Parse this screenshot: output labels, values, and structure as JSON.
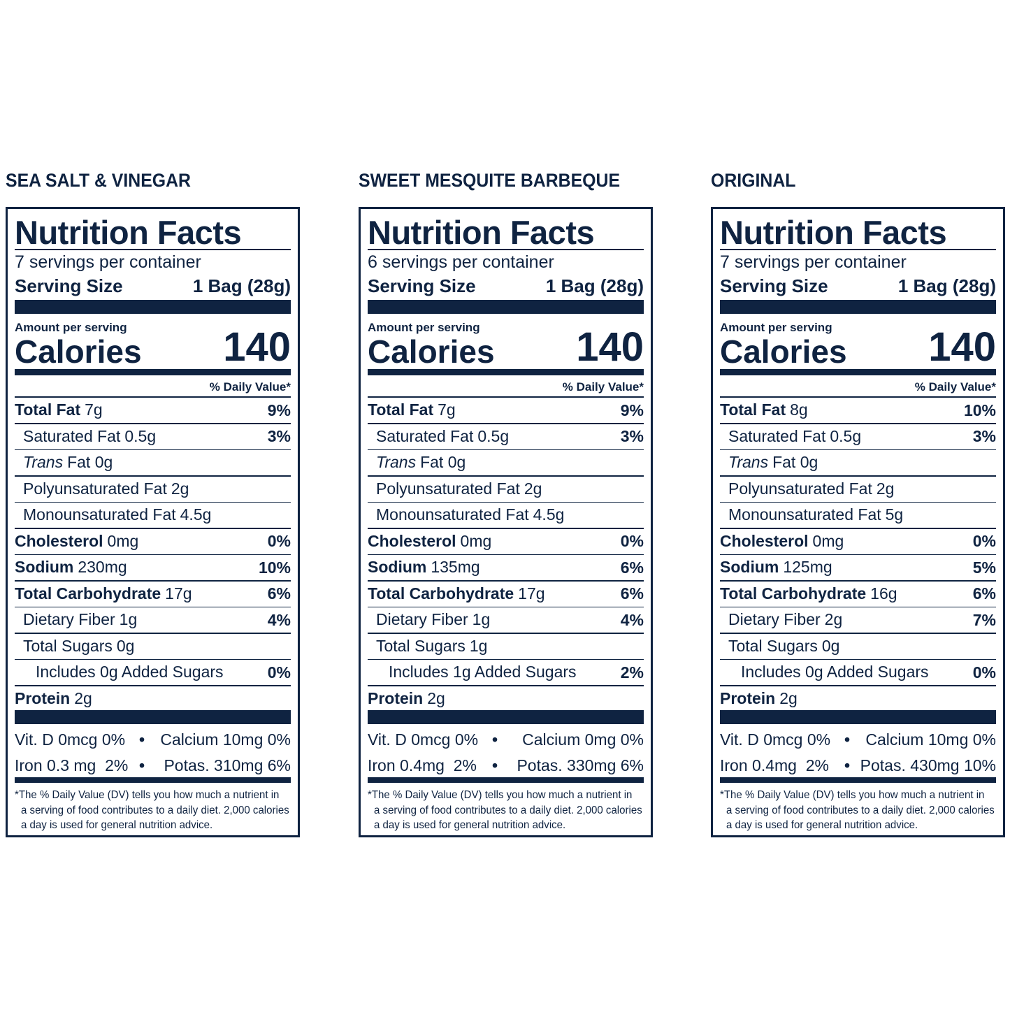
{
  "panels": [
    {
      "flavor": "SEA SALT & VINEGAR",
      "title": "Nutrition Facts",
      "servings": "7 servings per container",
      "serving_size_label": "Serving Size",
      "serving_size_value": "1 Bag (28g)",
      "amount_per_serving": "Amount per serving",
      "calories_label": "Calories",
      "calories": "140",
      "dv_header": "% Daily Value*",
      "rows": [
        {
          "name": "Total Fat",
          "amount": "7g",
          "dv": "9%"
        },
        {
          "name": "Saturated Fat",
          "amount": "0.5g",
          "dv": "3%"
        },
        {
          "name": "Trans",
          "amount": "Fat 0g"
        },
        {
          "name": "Polyunsaturated Fat",
          "amount": "2g"
        },
        {
          "name": "Monounsaturated Fat",
          "amount": "4.5g"
        },
        {
          "name": "Cholesterol",
          "amount": "0mg",
          "dv": "0%"
        },
        {
          "name": "Sodium",
          "amount": "230mg",
          "dv": "10%"
        },
        {
          "name": "Total Carbohydrate",
          "amount": "17g",
          "dv": "6%"
        },
        {
          "name": "Dietary Fiber",
          "amount": "1g",
          "dv": "4%"
        },
        {
          "name": "Total Sugars",
          "amount": "0g"
        },
        {
          "name": "Includes 0g Added Sugars",
          "dv": "0%"
        },
        {
          "name": "Protein",
          "amount": "2g"
        }
      ],
      "separator": "•",
      "minerals": [
        [
          "Vit. D 0mcg 0%",
          "Calcium 10mg 0%"
        ],
        [
          "Iron 0.3 mg  2%",
          "Potas. 310mg 6%"
        ]
      ],
      "footnote": [
        "*The % Daily Value (DV) tells you how much a nutrient in",
        "a serving of food contributes to a daily diet. 2,000 calories",
        "a day is used for general nutrition advice."
      ]
    },
    {
      "flavor": "SWEET MESQUITE BARBEQUE",
      "title": "Nutrition Facts",
      "servings": "6 servings per container",
      "serving_size_label": "Serving Size",
      "serving_size_value": "1 Bag (28g)",
      "amount_per_serving": "Amount per serving",
      "calories_label": "Calories",
      "calories": "140",
      "dv_header": "% Daily Value*",
      "rows": [
        {
          "name": "Total Fat",
          "amount": "7g",
          "dv": "9%"
        },
        {
          "name": "Saturated Fat",
          "amount": "0.5g",
          "dv": "3%"
        },
        {
          "name": "Trans",
          "amount": "Fat 0g"
        },
        {
          "name": "Polyunsaturated Fat",
          "amount": "2g"
        },
        {
          "name": "Monounsaturated Fat",
          "amount": "4.5g"
        },
        {
          "name": "Cholesterol",
          "amount": "0mg",
          "dv": "0%"
        },
        {
          "name": "Sodium",
          "amount": "135mg",
          "dv": "6%"
        },
        {
          "name": "Total Carbohydrate",
          "amount": "17g",
          "dv": "6%"
        },
        {
          "name": "Dietary Fiber",
          "amount": "1g",
          "dv": "4%"
        },
        {
          "name": "Total Sugars",
          "amount": "1g"
        },
        {
          "name": "Includes 1g Added Sugars",
          "dv": "2%"
        },
        {
          "name": "Protein",
          "amount": "2g"
        }
      ],
      "separator": "•",
      "minerals": [
        [
          "Vit. D 0mcg 0%",
          "Calcium 0mg 0%"
        ],
        [
          "Iron 0.4mg  2%",
          "Potas. 330mg 6%"
        ]
      ],
      "footnote": [
        "*The % Daily Value (DV) tells you how much a nutrient in",
        "a serving of food contributes to a daily diet. 2,000 calories",
        "a day is used for general nutrition advice."
      ]
    },
    {
      "flavor": "ORIGINAL",
      "title": "Nutrition Facts",
      "servings": "7 servings per container",
      "serving_size_label": "Serving Size",
      "serving_size_value": "1 Bag (28g)",
      "amount_per_serving": "Amount per serving",
      "calories_label": "Calories",
      "calories": "140",
      "dv_header": "% Daily Value*",
      "rows": [
        {
          "name": "Total Fat",
          "amount": "8g",
          "dv": "10%"
        },
        {
          "name": "Saturated Fat",
          "amount": "0.5g",
          "dv": "3%"
        },
        {
          "name": "Trans",
          "amount": "Fat 0g"
        },
        {
          "name": "Polyunsaturated Fat",
          "amount": "2g"
        },
        {
          "name": "Monounsaturated Fat",
          "amount": "5g"
        },
        {
          "name": "Cholesterol",
          "amount": "0mg",
          "dv": "0%"
        },
        {
          "name": "Sodium",
          "amount": "125mg",
          "dv": "5%"
        },
        {
          "name": "Total Carbohydrate",
          "amount": "16g",
          "dv": "6%"
        },
        {
          "name": "Dietary Fiber",
          "amount": "2g",
          "dv": "7%"
        },
        {
          "name": "Total Sugars",
          "amount": "0g"
        },
        {
          "name": "Includes 0g Added Sugars",
          "dv": "0%"
        },
        {
          "name": "Protein",
          "amount": "2g"
        }
      ],
      "separator": "•",
      "minerals": [
        [
          "Vit. D 0mcg 0%",
          "Calcium 10mg 0%"
        ],
        [
          "Iron 0.4mg  2%",
          "Potas. 430mg 10%"
        ]
      ],
      "footnote": [
        "*The % Daily Value (DV) tells you how much a nutrient in",
        "a serving of food contributes to a daily diet. 2,000 calories",
        "a day is used for general nutrition advice."
      ]
    }
  ]
}
